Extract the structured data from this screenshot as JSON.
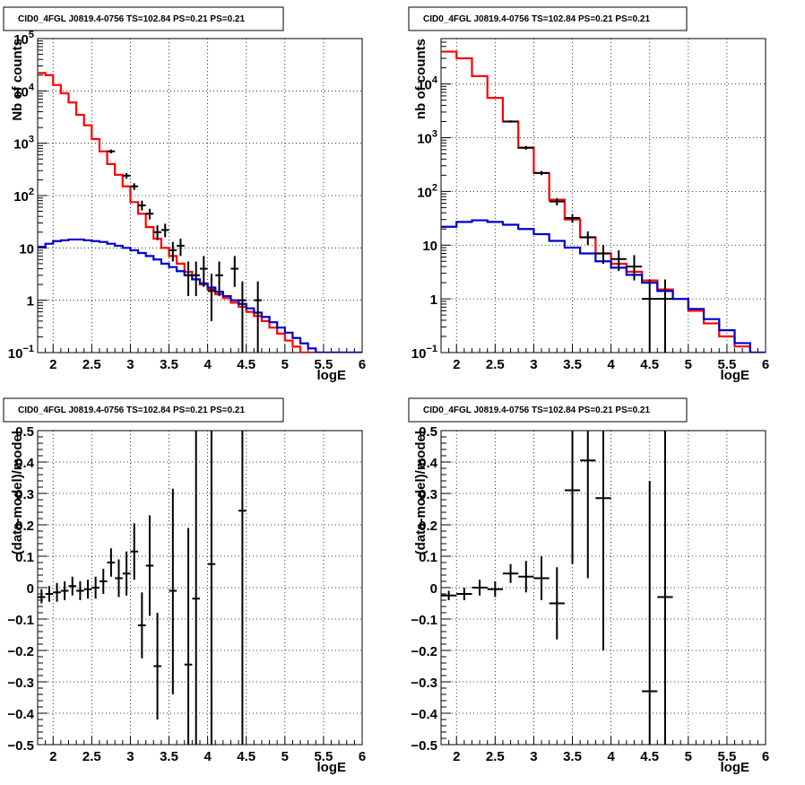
{
  "colors": {
    "data": "#000000",
    "total_model": "#ff0000",
    "background_model": "#0000cc",
    "grid": "#000000"
  },
  "chart_data": [
    {
      "type": "line",
      "title": "CID0_4FGL J0819.4-0756 TS=102.84 PS=0.21 PS=0.21",
      "xlabel": "logE",
      "ylabel": "Nb of counts",
      "xlim": [
        1.8,
        6.0
      ],
      "ylim": [
        0.1,
        100000
      ],
      "yscale": "log",
      "grid": true,
      "xticks": [
        2,
        2.5,
        3,
        3.5,
        4,
        4.5,
        5,
        5.5,
        6
      ],
      "xtick_labels": [
        "2",
        "2.5",
        "3",
        "3.5",
        "4",
        "4.5",
        "5",
        "5.5",
        "6"
      ],
      "yticks": [
        0.1,
        1,
        10,
        100,
        1000,
        10000,
        100000
      ],
      "ytick_labels": [
        {
          "b": "10",
          "e": "−1"
        },
        {
          "b": "1",
          "e": ""
        },
        {
          "b": "10",
          "e": ""
        },
        {
          "b": "10",
          "e": "2"
        },
        {
          "b": "10",
          "e": "3"
        },
        {
          "b": "10",
          "e": "4"
        },
        {
          "b": "10",
          "e": "5"
        }
      ],
      "bin_edges": [
        1.8,
        1.9,
        2.0,
        2.1,
        2.2,
        2.3,
        2.4,
        2.5,
        2.6,
        2.7,
        2.8,
        2.9,
        3.0,
        3.1,
        3.2,
        3.3,
        3.4,
        3.5,
        3.6,
        3.7,
        3.8,
        3.9,
        4.0,
        4.1,
        4.2,
        4.3,
        4.4,
        4.5,
        4.6,
        4.7,
        4.8,
        4.9,
        5.0,
        5.1,
        5.2,
        5.3,
        5.4,
        5.5,
        5.6,
        5.7,
        5.8,
        5.9,
        6.0
      ],
      "series": [
        {
          "role": "total_model",
          "style": "step",
          "values": [
            22000,
            20000,
            13000,
            9000,
            6000,
            3500,
            2200,
            1200,
            700,
            400,
            250,
            150,
            75,
            45,
            25,
            15,
            10,
            7,
            5,
            3.5,
            2.5,
            2.0,
            1.6,
            1.3,
            1.1,
            0.9,
            0.75,
            0.6,
            0.5,
            0.4,
            0.3,
            0.23,
            0.17,
            0.13,
            0.1,
            0.1,
            0.1,
            0.1,
            0.1,
            0.1,
            0.1,
            0.1
          ]
        },
        {
          "role": "background_model",
          "style": "step",
          "values": [
            10.5,
            12,
            13.5,
            14,
            14.5,
            14.5,
            14,
            13.5,
            13,
            12,
            11,
            10,
            9,
            8,
            7,
            6,
            5,
            4.3,
            3.6,
            3,
            2.5,
            2.1,
            1.75,
            1.45,
            1.2,
            1.0,
            0.85,
            0.7,
            0.58,
            0.48,
            0.38,
            0.3,
            0.24,
            0.19,
            0.15,
            0.12,
            0.1,
            0.1,
            0.1,
            0.1,
            0.1,
            0.1
          ]
        }
      ],
      "points": [
        {
          "x": 2.75,
          "xerr": 0.05,
          "y": 700,
          "ylow": 640,
          "yhigh": 760
        },
        {
          "x": 2.95,
          "xerr": 0.05,
          "y": 240,
          "ylow": 210,
          "yhigh": 270
        },
        {
          "x": 3.05,
          "xerr": 0.05,
          "y": 150,
          "ylow": 128,
          "yhigh": 172
        },
        {
          "x": 3.15,
          "xerr": 0.05,
          "y": 65,
          "ylow": 52,
          "yhigh": 80
        },
        {
          "x": 3.25,
          "xerr": 0.05,
          "y": 45,
          "ylow": 35,
          "yhigh": 56
        },
        {
          "x": 3.35,
          "xerr": 0.05,
          "y": 20,
          "ylow": 14,
          "yhigh": 27
        },
        {
          "x": 3.45,
          "xerr": 0.05,
          "y": 22,
          "ylow": 16,
          "yhigh": 29
        },
        {
          "x": 3.55,
          "xerr": 0.05,
          "y": 9,
          "ylow": 5.5,
          "yhigh": 13
        },
        {
          "x": 3.65,
          "xerr": 0.05,
          "y": 11,
          "ylow": 7,
          "yhigh": 15
        },
        {
          "x": 3.75,
          "xerr": 0.05,
          "y": 3,
          "ylow": 1.2,
          "yhigh": 5.5
        },
        {
          "x": 3.85,
          "xerr": 0.05,
          "y": 3,
          "ylow": 1.2,
          "yhigh": 5.5
        },
        {
          "x": 3.95,
          "xerr": 0.05,
          "y": 4,
          "ylow": 1.8,
          "yhigh": 7
        },
        {
          "x": 4.05,
          "xerr": 0.05,
          "y": 1.5,
          "ylow": 0.4,
          "yhigh": 3.2
        },
        {
          "x": 4.15,
          "xerr": 0.05,
          "y": 3,
          "ylow": 1.2,
          "yhigh": 5.5
        },
        {
          "x": 4.35,
          "xerr": 0.05,
          "y": 4,
          "ylow": 1.8,
          "yhigh": 7
        },
        {
          "x": 4.45,
          "xerr": 0.05,
          "y": 1,
          "ylow": 0.1,
          "yhigh": 2.3
        },
        {
          "x": 4.65,
          "xerr": 0.05,
          "y": 1,
          "ylow": 0.1,
          "yhigh": 2.3
        }
      ]
    },
    {
      "type": "line",
      "title": "CID0_4FGL J0819.4-0756 TS=102.84 PS=0.21 PS=0.21",
      "xlabel": "logE",
      "ylabel": "nb of counts",
      "xlim": [
        1.8,
        6.0
      ],
      "ylim": [
        0.1,
        70000
      ],
      "yscale": "log",
      "grid": true,
      "xticks": [
        2,
        2.5,
        3,
        3.5,
        4,
        4.5,
        5,
        5.5,
        6
      ],
      "xtick_labels": [
        "2",
        "2.5",
        "3",
        "3.5",
        "4",
        "4.5",
        "5",
        "5.5",
        "6"
      ],
      "yticks": [
        0.1,
        1,
        10,
        100,
        1000,
        10000
      ],
      "ytick_labels": [
        {
          "b": "10",
          "e": "−1"
        },
        {
          "b": "1",
          "e": ""
        },
        {
          "b": "10",
          "e": ""
        },
        {
          "b": "10",
          "e": "2"
        },
        {
          "b": "10",
          "e": "3"
        },
        {
          "b": "10",
          "e": "4"
        }
      ],
      "bin_edges": [
        1.8,
        2.0,
        2.2,
        2.4,
        2.6,
        2.8,
        3.0,
        3.2,
        3.4,
        3.6,
        3.8,
        4.0,
        4.2,
        4.4,
        4.6,
        4.8,
        5.0,
        5.2,
        5.4,
        5.6,
        5.8,
        6.0
      ],
      "series": [
        {
          "role": "total_model",
          "style": "step",
          "values": [
            40000,
            30000,
            14000,
            5500,
            2000,
            650,
            220,
            70,
            30,
            14,
            7,
            4.5,
            3.2,
            2.2,
            1.5,
            1.0,
            0.6,
            0.35,
            0.2,
            0.13,
            0.1
          ]
        },
        {
          "role": "background_model",
          "style": "step",
          "values": [
            22,
            27,
            29,
            27,
            24,
            20,
            16,
            12,
            9,
            7,
            5,
            3.8,
            2.8,
            2.0,
            1.4,
            1.0,
            0.65,
            0.42,
            0.26,
            0.15,
            0.1
          ]
        }
      ],
      "points": [
        {
          "x": 2.7,
          "xerr": 0.1,
          "y": 2000,
          "ylow": 1900,
          "yhigh": 2100
        },
        {
          "x": 2.9,
          "xerr": 0.1,
          "y": 650,
          "ylow": 600,
          "yhigh": 700
        },
        {
          "x": 3.1,
          "xerr": 0.1,
          "y": 220,
          "ylow": 200,
          "yhigh": 240
        },
        {
          "x": 3.3,
          "xerr": 0.1,
          "y": 65,
          "ylow": 55,
          "yhigh": 75
        },
        {
          "x": 3.5,
          "xerr": 0.1,
          "y": 32,
          "ylow": 26,
          "yhigh": 38
        },
        {
          "x": 3.7,
          "xerr": 0.1,
          "y": 14,
          "ylow": 10,
          "yhigh": 18
        },
        {
          "x": 3.9,
          "xerr": 0.1,
          "y": 7,
          "ylow": 4.5,
          "yhigh": 10
        },
        {
          "x": 4.1,
          "xerr": 0.1,
          "y": 5.5,
          "ylow": 3.3,
          "yhigh": 8
        },
        {
          "x": 4.3,
          "xerr": 0.1,
          "y": 4,
          "ylow": 2.2,
          "yhigh": 6.5
        },
        {
          "x": 4.5,
          "xerr": 0.1,
          "y": 1,
          "ylow": 0.1,
          "yhigh": 2.3
        },
        {
          "x": 4.7,
          "xerr": 0.1,
          "y": 1,
          "ylow": 0.1,
          "yhigh": 2.3
        }
      ]
    },
    {
      "type": "scatter",
      "title": "CID0_4FGL J0819.4-0756 TS=102.84 PS=0.21 PS=0.21",
      "xlabel": "logE",
      "ylabel": "(data-model)/model",
      "xlim": [
        1.8,
        6.0
      ],
      "ylim": [
        -0.5,
        0.5
      ],
      "yscale": "linear",
      "grid": true,
      "xticks": [
        2,
        2.5,
        3,
        3.5,
        4,
        4.5,
        5,
        5.5,
        6
      ],
      "xtick_labels": [
        "2",
        "2.5",
        "3",
        "3.5",
        "4",
        "4.5",
        "5",
        "5.5",
        "6"
      ],
      "yticks": [
        -0.5,
        -0.4,
        -0.3,
        -0.2,
        -0.1,
        0,
        0.1,
        0.2,
        0.3,
        0.4,
        0.5
      ],
      "ytick_labels": [
        "−0.5",
        "−0.4",
        "−0.3",
        "−0.2",
        "−0.1",
        "0",
        "0.1",
        "0.2",
        "0.3",
        "0.4",
        "0.5"
      ],
      "points": [
        {
          "x": 1.85,
          "xerr": 0.05,
          "y": -0.03,
          "ylow": -0.05,
          "yhigh": -0.005
        },
        {
          "x": 1.95,
          "xerr": 0.05,
          "y": -0.02,
          "ylow": -0.045,
          "yhigh": 0.005
        },
        {
          "x": 2.05,
          "xerr": 0.05,
          "y": -0.015,
          "ylow": -0.045,
          "yhigh": 0.015
        },
        {
          "x": 2.15,
          "xerr": 0.05,
          "y": -0.01,
          "ylow": -0.04,
          "yhigh": 0.02
        },
        {
          "x": 2.25,
          "xerr": 0.05,
          "y": 0.005,
          "ylow": -0.025,
          "yhigh": 0.035
        },
        {
          "x": 2.35,
          "xerr": 0.05,
          "y": -0.01,
          "ylow": -0.04,
          "yhigh": 0.02
        },
        {
          "x": 2.45,
          "xerr": 0.05,
          "y": -0.005,
          "ylow": -0.035,
          "yhigh": 0.025
        },
        {
          "x": 2.55,
          "xerr": 0.05,
          "y": 0.0,
          "ylow": -0.035,
          "yhigh": 0.035
        },
        {
          "x": 2.65,
          "xerr": 0.05,
          "y": 0.02,
          "ylow": -0.02,
          "yhigh": 0.06
        },
        {
          "x": 2.75,
          "xerr": 0.05,
          "y": 0.08,
          "ylow": 0.035,
          "yhigh": 0.125
        },
        {
          "x": 2.85,
          "xerr": 0.05,
          "y": 0.03,
          "ylow": -0.03,
          "yhigh": 0.09
        },
        {
          "x": 2.95,
          "xerr": 0.05,
          "y": 0.045,
          "ylow": -0.025,
          "yhigh": 0.115
        },
        {
          "x": 3.05,
          "xerr": 0.05,
          "y": 0.115,
          "ylow": 0.025,
          "yhigh": 0.205
        },
        {
          "x": 3.15,
          "xerr": 0.05,
          "y": -0.12,
          "ylow": -0.225,
          "yhigh": -0.015
        },
        {
          "x": 3.25,
          "xerr": 0.05,
          "y": 0.07,
          "ylow": -0.09,
          "yhigh": 0.23
        },
        {
          "x": 3.35,
          "xerr": 0.05,
          "y": -0.25,
          "ylow": -0.42,
          "yhigh": -0.08
        },
        {
          "x": 3.55,
          "xerr": 0.05,
          "y": -0.01,
          "ylow": -0.34,
          "yhigh": 0.315
        },
        {
          "x": 3.75,
          "xerr": 0.05,
          "y": -0.245,
          "ylow": -0.5,
          "yhigh": 0.19
        },
        {
          "x": 3.85,
          "xerr": 0.05,
          "y": -0.035,
          "ylow": -0.5,
          "yhigh": 0.5
        },
        {
          "x": 4.05,
          "xerr": 0.05,
          "y": 0.075,
          "ylow": -0.5,
          "yhigh": 0.5
        },
        {
          "x": 4.45,
          "xerr": 0.05,
          "y": 0.245,
          "ylow": -0.5,
          "yhigh": 0.5
        }
      ]
    },
    {
      "type": "scatter",
      "title": "CID0_4FGL J0819.4-0756 TS=102.84 PS=0.21 PS=0.21",
      "xlabel": "logE",
      "ylabel": "(data-model)/model",
      "xlim": [
        1.8,
        6.0
      ],
      "ylim": [
        -0.5,
        0.5
      ],
      "yscale": "linear",
      "grid": true,
      "xticks": [
        2,
        2.5,
        3,
        3.5,
        4,
        4.5,
        5,
        5.5,
        6
      ],
      "xtick_labels": [
        "2",
        "2.5",
        "3",
        "3.5",
        "4",
        "4.5",
        "5",
        "5.5",
        "6"
      ],
      "yticks": [
        -0.5,
        -0.4,
        -0.3,
        -0.2,
        -0.1,
        0,
        0.1,
        0.2,
        0.3,
        0.4,
        0.5
      ],
      "ytick_labels": [
        "−0.5",
        "−0.4",
        "−0.3",
        "−0.2",
        "−0.1",
        "0",
        "0.1",
        "0.2",
        "0.3",
        "0.4",
        "0.5"
      ],
      "points": [
        {
          "x": 1.9,
          "xerr": 0.1,
          "y": -0.025,
          "ylow": -0.04,
          "yhigh": -0.01
        },
        {
          "x": 2.1,
          "xerr": 0.1,
          "y": -0.02,
          "ylow": -0.04,
          "yhigh": 0.0
        },
        {
          "x": 2.3,
          "xerr": 0.1,
          "y": 0.0,
          "ylow": -0.025,
          "yhigh": 0.025
        },
        {
          "x": 2.5,
          "xerr": 0.1,
          "y": -0.005,
          "ylow": -0.03,
          "yhigh": 0.02
        },
        {
          "x": 2.7,
          "xerr": 0.1,
          "y": 0.045,
          "ylow": 0.015,
          "yhigh": 0.075
        },
        {
          "x": 2.9,
          "xerr": 0.1,
          "y": 0.035,
          "ylow": -0.015,
          "yhigh": 0.085
        },
        {
          "x": 3.1,
          "xerr": 0.1,
          "y": 0.03,
          "ylow": -0.04,
          "yhigh": 0.1
        },
        {
          "x": 3.3,
          "xerr": 0.1,
          "y": -0.05,
          "ylow": -0.165,
          "yhigh": 0.065
        },
        {
          "x": 3.5,
          "xerr": 0.1,
          "y": 0.31,
          "ylow": 0.075,
          "yhigh": 0.5
        },
        {
          "x": 3.7,
          "xerr": 0.1,
          "y": 0.405,
          "ylow": 0.03,
          "yhigh": 0.5
        },
        {
          "x": 3.9,
          "xerr": 0.1,
          "y": 0.285,
          "ylow": -0.2,
          "yhigh": 0.5
        },
        {
          "x": 4.5,
          "xerr": 0.1,
          "y": -0.33,
          "ylow": -0.5,
          "yhigh": 0.34
        },
        {
          "x": 4.7,
          "xerr": 0.1,
          "y": -0.03,
          "ylow": -0.5,
          "yhigh": 0.5
        }
      ]
    }
  ]
}
